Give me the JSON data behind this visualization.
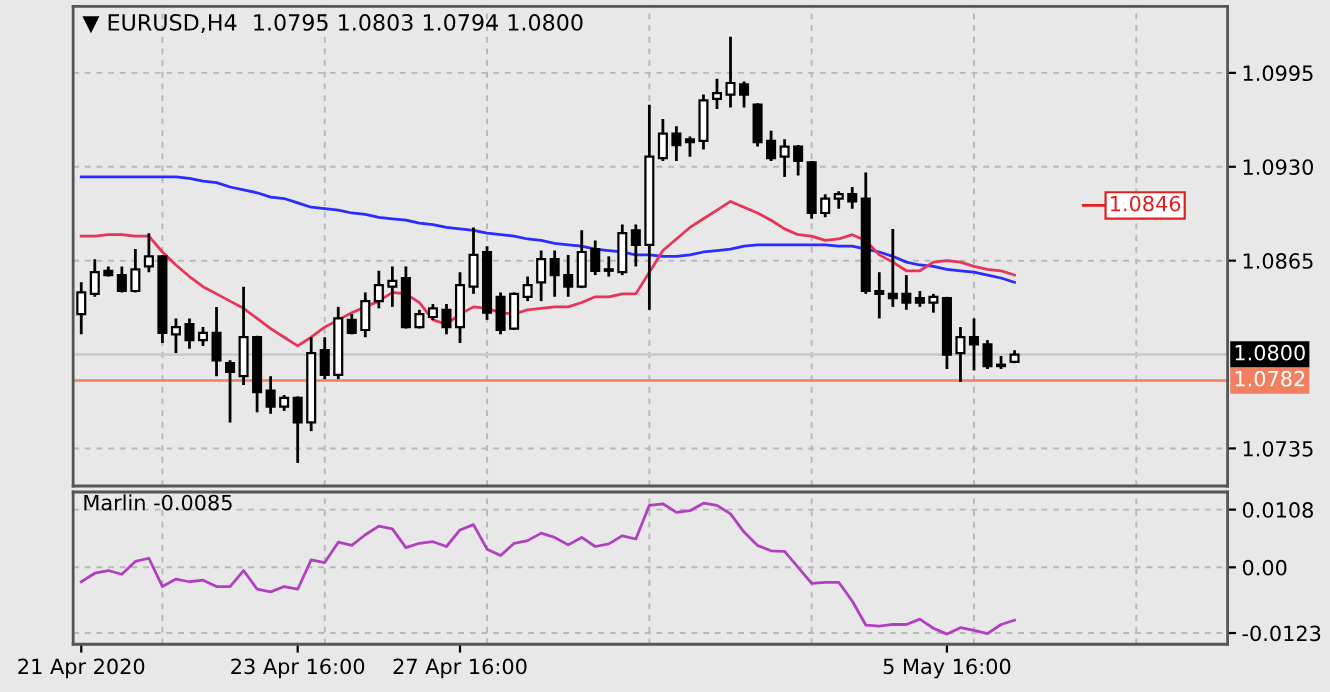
{
  "chart_data": [
    {
      "type": "candlestick",
      "title": "▼ EURUSD,H4  1.0795 1.0803 1.0794 1.0800",
      "categories": [
        null,
        null,
        null,
        null,
        null,
        null,
        null,
        null,
        null,
        null,
        null,
        null,
        null,
        null,
        null,
        null,
        null,
        null,
        null,
        null,
        null,
        null,
        null,
        null,
        null,
        null,
        null,
        null,
        null,
        null,
        null,
        null,
        null,
        null,
        null,
        null,
        null,
        null,
        null,
        null,
        null,
        null,
        null,
        null,
        null,
        null,
        null,
        null,
        null,
        null,
        null,
        null,
        null,
        null,
        null,
        null,
        null,
        null,
        null,
        null,
        null,
        null,
        null,
        null,
        null,
        null,
        null,
        null,
        null,
        null
      ],
      "ohlc": [
        [
          1.0828,
          1.085,
          1.0814,
          1.0843
        ],
        [
          1.0842,
          1.0866,
          1.084,
          1.0857
        ],
        [
          1.0858,
          1.0861,
          1.0854,
          1.0855
        ],
        [
          1.0855,
          1.0861,
          1.0843,
          1.0844
        ],
        [
          1.0844,
          1.0873,
          1.0843,
          1.0859
        ],
        [
          1.0861,
          1.0884,
          1.0857,
          1.0868
        ],
        [
          1.0868,
          1.0869,
          1.0808,
          1.0815
        ],
        [
          1.0814,
          1.0825,
          1.0801,
          1.0819
        ],
        [
          1.0821,
          1.0825,
          1.0804,
          1.081
        ],
        [
          1.081,
          1.0819,
          1.0806,
          1.0815
        ],
        [
          1.0815,
          1.0833,
          1.0785,
          1.0796
        ],
        [
          1.0794,
          1.0796,
          1.0753,
          1.0788
        ],
        [
          1.0785,
          1.0847,
          1.0779,
          1.0812
        ],
        [
          1.0812,
          1.0813,
          1.076,
          1.0774
        ],
        [
          1.0775,
          1.0785,
          1.0759,
          1.0764
        ],
        [
          1.0764,
          1.0772,
          1.0761,
          1.077
        ],
        [
          1.077,
          1.0771,
          1.0725,
          1.0753
        ],
        [
          1.0753,
          1.0812,
          1.0747,
          1.0801
        ],
        [
          1.0803,
          1.0812,
          1.0783,
          1.0786
        ],
        [
          1.0786,
          1.0833,
          1.0783,
          1.0825
        ],
        [
          1.0824,
          1.0828,
          1.0814,
          1.0815
        ],
        [
          1.0817,
          1.0843,
          1.0812,
          1.0837
        ],
        [
          1.0837,
          1.0858,
          1.0832,
          1.0848
        ],
        [
          1.0847,
          1.0861,
          1.0833,
          1.0851
        ],
        [
          1.0853,
          1.0861,
          1.0818,
          1.0819
        ],
        [
          1.0819,
          1.0831,
          1.0818,
          1.0828
        ],
        [
          1.0826,
          1.0835,
          1.0824,
          1.0832
        ],
        [
          1.0831,
          1.0835,
          1.0814,
          1.0819
        ],
        [
          1.0819,
          1.0857,
          1.0808,
          1.0848
        ],
        [
          1.0847,
          1.0888,
          1.0842,
          1.0869
        ],
        [
          1.0871,
          1.0875,
          1.0824,
          1.0829
        ],
        [
          1.084,
          1.0843,
          1.0814,
          1.0817
        ],
        [
          1.0818,
          1.0843,
          1.0817,
          1.0842
        ],
        [
          1.084,
          1.0854,
          1.0837,
          1.0848
        ],
        [
          1.085,
          1.0872,
          1.0837,
          1.0866
        ],
        [
          1.0866,
          1.0872,
          1.084,
          1.0855
        ],
        [
          1.0855,
          1.0869,
          1.084,
          1.0847
        ],
        [
          1.0847,
          1.0886,
          1.0846,
          1.0871
        ],
        [
          1.0873,
          1.0879,
          1.0855,
          1.0858
        ],
        [
          1.0859,
          1.0868,
          1.0854,
          1.0858
        ],
        [
          1.0857,
          1.089,
          1.0855,
          1.0884
        ],
        [
          1.0886,
          1.089,
          1.0861,
          1.0876
        ],
        [
          1.0876,
          1.0973,
          1.0831,
          1.0937
        ],
        [
          1.0936,
          1.0963,
          1.0934,
          1.0953
        ],
        [
          1.0953,
          1.0958,
          1.0934,
          1.0945
        ],
        [
          1.0949,
          1.0951,
          1.0937,
          1.0947
        ],
        [
          1.0948,
          1.098,
          1.0942,
          1.0976
        ],
        [
          1.0977,
          1.0991,
          1.097,
          1.0981
        ],
        [
          1.098,
          1.102,
          1.0971,
          1.0988
        ],
        [
          1.0987,
          1.0989,
          1.0971,
          1.098
        ],
        [
          1.0973,
          1.0974,
          1.0944,
          1.0947
        ],
        [
          1.0948,
          1.0955,
          1.0934,
          1.0936
        ],
        [
          1.0937,
          1.0949,
          1.0923,
          1.0944
        ],
        [
          1.0944,
          1.0945,
          1.0924,
          1.0934
        ],
        [
          1.0933,
          1.0934,
          1.0894,
          1.0898
        ],
        [
          1.0898,
          1.0911,
          1.0895,
          1.0908
        ],
        [
          1.0908,
          1.0913,
          1.0901,
          1.0911
        ],
        [
          1.0911,
          1.0916,
          1.0901,
          1.0906
        ],
        [
          1.0908,
          1.0926,
          1.0842,
          1.0844
        ],
        [
          1.0844,
          1.0857,
          1.0825,
          1.0842
        ],
        [
          1.0842,
          1.0887,
          1.0833,
          1.0839
        ],
        [
          1.0842,
          1.0855,
          1.0831,
          1.0836
        ],
        [
          1.0839,
          1.0844,
          1.0833,
          1.0836
        ],
        [
          1.0836,
          1.0842,
          1.0829,
          1.084
        ],
        [
          1.0839,
          1.084,
          1.079,
          1.08
        ],
        [
          1.0801,
          1.0819,
          1.0781,
          1.0812
        ],
        [
          1.0812,
          1.0825,
          1.0789,
          1.0807
        ],
        [
          1.0807,
          1.081,
          1.079,
          1.0792
        ],
        [
          1.0793,
          1.0799,
          1.079,
          1.0792
        ],
        [
          1.0795,
          1.0803,
          1.0794,
          1.08
        ]
      ],
      "series": [
        {
          "type": "line",
          "color": "#2b2bff",
          "values": [
            1.0923,
            1.0923,
            1.0923,
            1.0923,
            1.0923,
            1.0923,
            1.0923,
            1.0923,
            1.0922,
            1.092,
            1.0919,
            1.0916,
            1.0914,
            1.0912,
            1.0909,
            1.0908,
            1.0905,
            1.0902,
            1.0901,
            1.09,
            1.0898,
            1.0897,
            1.0895,
            1.0894,
            1.0893,
            1.0891,
            1.089,
            1.0888,
            1.0887,
            1.0886,
            1.0884,
            1.0883,
            1.0882,
            1.088,
            1.0879,
            1.0877,
            1.0876,
            1.0875,
            1.0873,
            1.0872,
            1.0871,
            1.0869,
            1.0869,
            1.0868,
            1.0868,
            1.0869,
            1.0871,
            1.0872,
            1.0873,
            1.0875,
            1.0876,
            1.0876,
            1.0876,
            1.0876,
            1.0876,
            1.0876,
            1.0875,
            1.0875,
            1.0873,
            1.0871,
            1.0868,
            1.0864,
            1.0862,
            1.0861,
            1.0859,
            1.0858,
            1.0857,
            1.0855,
            1.0853,
            1.085
          ]
        },
        {
          "type": "line",
          "color": "#e8335a",
          "values": [
            1.0882,
            1.0882,
            1.0883,
            1.0883,
            1.0882,
            1.0882,
            1.0871,
            1.0862,
            1.0854,
            1.0847,
            1.0842,
            1.0837,
            1.0832,
            1.0825,
            1.0818,
            1.0812,
            1.0806,
            1.0812,
            1.0819,
            1.0824,
            1.0829,
            1.0833,
            1.0837,
            1.0843,
            1.0842,
            1.0836,
            1.0824,
            1.0821,
            1.0828,
            1.0833,
            1.0832,
            1.0829,
            1.0828,
            1.0831,
            1.0832,
            1.0833,
            1.0833,
            1.0836,
            1.084,
            1.084,
            1.0842,
            1.0842,
            1.0857,
            1.0872,
            1.088,
            1.0888,
            1.0894,
            1.09,
            1.0906,
            1.0902,
            1.0898,
            1.0893,
            1.0887,
            1.0883,
            1.0882,
            1.0879,
            1.088,
            1.0883,
            1.0879,
            1.0869,
            1.0864,
            1.0858,
            1.0858,
            1.0864,
            1.0865,
            1.0864,
            1.0861,
            1.0859,
            1.0858,
            1.0855
          ]
        }
      ],
      "ylim": [
        1.0709,
        1.1041
      ],
      "yticks": [
        1.0995,
        {
          "value": 1.093,
          "label": "1.0930"
        },
        1.0865,
        1.0735
      ],
      "grid": true,
      "tick_labels": "y",
      "ref_lines": [
        {
          "axis": "y",
          "value": 1.08,
          "label": "1.0800",
          "color": "#c8c8c8"
        },
        {
          "axis": "y",
          "value": 1.0782,
          "label": "1.0782",
          "color": "#f08060"
        }
      ],
      "annotations": [
        "1.0846"
      ]
    },
    {
      "type": "line",
      "title": "Marlin -0.0085",
      "categories": [
        "21 Apr 2020",
        null,
        null,
        null,
        null,
        null,
        null,
        null,
        null,
        null,
        null,
        null,
        null,
        null,
        null,
        null,
        "23 Apr 16:00",
        null,
        null,
        null,
        null,
        null,
        null,
        null,
        null,
        null,
        null,
        null,
        "27 Apr 16:00",
        null,
        null,
        null,
        null,
        null,
        null,
        null,
        null,
        null,
        null,
        null,
        null,
        null,
        null,
        null,
        null,
        null,
        null,
        null,
        null,
        null,
        null,
        null,
        null,
        null,
        null,
        null,
        null,
        null,
        null,
        null,
        null,
        null,
        null,
        null,
        "5 May 16:00",
        null,
        null,
        null,
        null,
        null
      ],
      "series": [
        {
          "color": "#b040c0",
          "values": [
            -0.0027,
            -0.0011,
            -0.0006,
            -0.0013,
            0.0011,
            0.0017,
            -0.0036,
            -0.0022,
            -0.0027,
            -0.0024,
            -0.0036,
            -0.0036,
            -0.0006,
            -0.0041,
            -0.0046,
            -0.0036,
            -0.0041,
            0.0014,
            0.0009,
            0.0047,
            0.0041,
            0.0061,
            0.0077,
            0.0072,
            0.0037,
            0.0045,
            0.0048,
            0.0039,
            0.007,
            0.008,
            0.0034,
            0.0022,
            0.0045,
            0.005,
            0.0064,
            0.0056,
            0.0042,
            0.0056,
            0.0039,
            0.0044,
            0.0059,
            0.0053,
            0.0116,
            0.0119,
            0.0103,
            0.0106,
            0.012,
            0.0116,
            0.01,
            0.0066,
            0.0041,
            0.0031,
            0.003,
            0.0,
            -0.003,
            -0.0028,
            -0.0028,
            -0.0063,
            -0.0108,
            -0.011,
            -0.0107,
            -0.0107,
            -0.0097,
            -0.0114,
            -0.0125,
            -0.0113,
            -0.0118,
            -0.0124,
            -0.0107,
            -0.0099
          ]
        }
      ],
      "ylim": [
        -0.0144,
        0.0141
      ],
      "yticks": [
        0.0108,
        {
          "value": 0,
          "label": "0.00"
        },
        -0.0123
      ],
      "grid": true
    }
  ]
}
